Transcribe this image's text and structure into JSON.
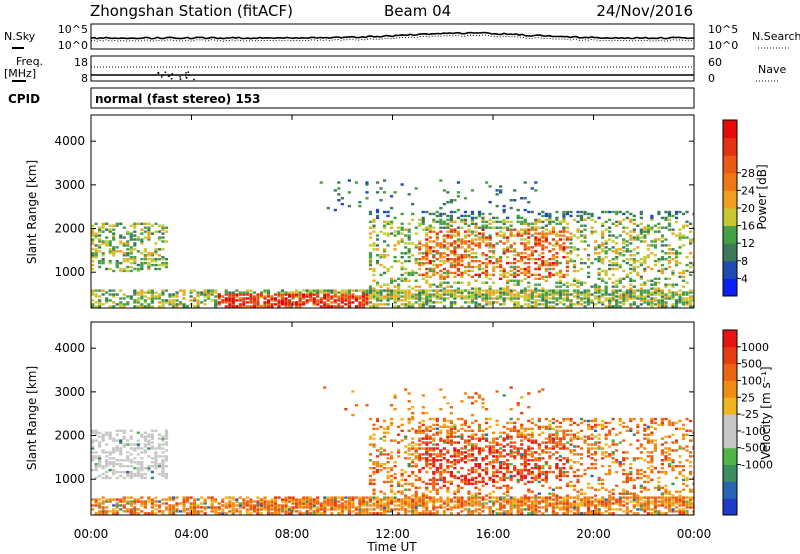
{
  "header": {
    "station": "Zhongshan Station (fitACF)",
    "beam": "Beam 04",
    "date": "24/Nov/2016"
  },
  "strip_labels": {
    "nsky": "N.Sky",
    "nsearch": "N.Search",
    "freq": "Freq.",
    "freq_unit": "[MHz]",
    "nave": "Nave",
    "cpid": "CPID",
    "cpid_value": "normal (fast stereo) 153",
    "noise_tick_top": "10^5",
    "noise_tick_bottom": "10^0",
    "freq_tick_top": "18",
    "freq_tick_bottom": "8",
    "nave_tick_top": "60",
    "nave_tick_bottom": "0"
  },
  "chart_data": [
    {
      "type": "heatmap",
      "name": "power",
      "ylabel": "Slant Range [km]",
      "xlabel": "Time UT",
      "ylim": [
        180,
        4600
      ],
      "yticks": [
        "1000",
        "2000",
        "3000",
        "4000"
      ],
      "xticks": [
        "00:00",
        "04:00",
        "08:00",
        "12:00",
        "16:00",
        "20:00",
        "00:00"
      ],
      "colorbar": {
        "label": "Power [dB]",
        "ticks": [
          "4",
          "8",
          "12",
          "16",
          "20",
          "24",
          "28"
        ],
        "colors": [
          "#0a1ef5",
          "#1e4bb4",
          "#3c7a5a",
          "#46a046",
          "#c8c832",
          "#f0a01e",
          "#f07814",
          "#eb5a14",
          "#e63214",
          "#e60a0a"
        ]
      }
    },
    {
      "type": "heatmap",
      "name": "velocity",
      "ylabel": "Slant Range [km]",
      "xlabel": "Time UT",
      "ylim": [
        180,
        4600
      ],
      "yticks": [
        "1000",
        "2000",
        "3000",
        "4000"
      ],
      "xticks": [
        "00:00",
        "04:00",
        "08:00",
        "12:00",
        "16:00",
        "20:00",
        "00:00"
      ],
      "colorbar": {
        "label": "Velocity [m s⁻¹]",
        "ticks": [
          "1000",
          "500",
          "100",
          "25",
          "-25",
          "-100",
          "-500",
          "-1000"
        ],
        "colors": [
          "#1e3cc8",
          "#2864b4",
          "#3c8c64",
          "#50b446",
          "#c8c8c8",
          "#c8c8c8",
          "#f0b41e",
          "#f08c14",
          "#eb6414",
          "#e63c14",
          "#e61414"
        ]
      }
    }
  ]
}
